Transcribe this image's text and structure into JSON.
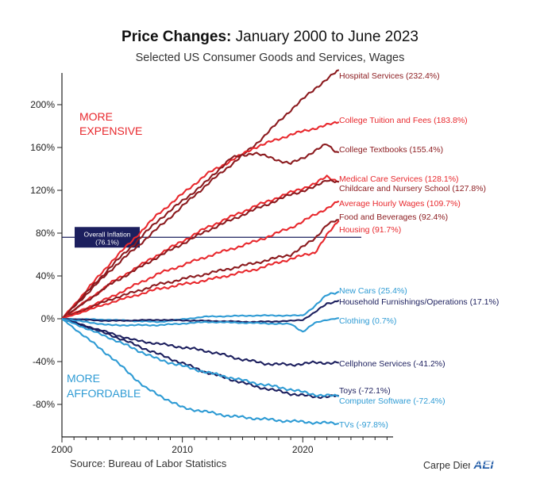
{
  "header": {
    "title_bold": "Price Changes:",
    "title_rest": "January 2000 to June 2023",
    "subtitle": "Selected US Consumer Goods and Services, Wages"
  },
  "annotations": {
    "more_expensive_1": "MORE",
    "more_expensive_2": "EXPENSIVE",
    "more_affordable_1": "MORE",
    "more_affordable_2": "AFFORDABLE",
    "overall_inflation_1": "Overall Inflation",
    "overall_inflation_2": "(76.1%)"
  },
  "footer": {
    "source": "Source: Bureau of Labor Statistics",
    "brand": "Carpe Diem",
    "logo_text": "AEI"
  },
  "colors": {
    "red": "#e8282d",
    "dark_red": "#8b1a1e",
    "light_blue": "#2e9bd4",
    "navy": "#1c1f5e",
    "axis": "#222222"
  },
  "chart_data": {
    "type": "line",
    "title": "Price Changes: January 2000 to June 2023",
    "subtitle": "Selected US Consumer Goods and Services, Wages",
    "xlabel": "",
    "ylabel": "",
    "x_ticks": [
      "2000",
      "2010",
      "2020"
    ],
    "y_ticks": [
      "200%",
      "160%",
      "120%",
      "80%",
      "40%",
      "0%",
      "-40%",
      "-80%"
    ],
    "y_tick_values": [
      200,
      160,
      120,
      80,
      40,
      0,
      -40,
      -80
    ],
    "xlim": [
      2000,
      2027.5
    ],
    "ylim": [
      -110,
      235
    ],
    "reference_line": {
      "label": "Overall Inflation (76.1%)",
      "value": 76.1
    },
    "series": [
      {
        "name": "Hospital Services (232.4%)",
        "color": "#8b1a1e",
        "points": [
          [
            2000,
            0
          ],
          [
            2004,
            45
          ],
          [
            2008,
            85
          ],
          [
            2012,
            125
          ],
          [
            2016,
            162
          ],
          [
            2019,
            195
          ],
          [
            2021,
            215
          ],
          [
            2023,
            232.4
          ]
        ]
      },
      {
        "name": "College Tuition and Fees (183.8%)",
        "color": "#e8282d",
        "points": [
          [
            2000,
            0
          ],
          [
            2004,
            52
          ],
          [
            2008,
            98
          ],
          [
            2012,
            135
          ],
          [
            2016,
            160
          ],
          [
            2019,
            172
          ],
          [
            2021,
            178
          ],
          [
            2023,
            183.8
          ]
        ]
      },
      {
        "name": "College Textbooks (155.4%)",
        "color": "#8b1a1e",
        "points": [
          [
            2000,
            0
          ],
          [
            2004,
            48
          ],
          [
            2008,
            92
          ],
          [
            2012,
            128
          ],
          [
            2014,
            150
          ],
          [
            2016,
            155
          ],
          [
            2018,
            148
          ],
          [
            2019,
            145
          ],
          [
            2020,
            150
          ],
          [
            2021,
            157
          ],
          [
            2022,
            163
          ],
          [
            2022.5,
            158
          ],
          [
            2023,
            155.4
          ]
        ]
      },
      {
        "name": "Medical Care Services (128.1%)",
        "color": "#e8282d",
        "points": [
          [
            2000,
            0
          ],
          [
            2004,
            33
          ],
          [
            2008,
            60
          ],
          [
            2012,
            85
          ],
          [
            2016,
            105
          ],
          [
            2019,
            118
          ],
          [
            2021,
            126
          ],
          [
            2022,
            133
          ],
          [
            2023,
            128.1
          ]
        ]
      },
      {
        "name": "Childcare and Nursery School (127.8%)",
        "color": "#8b1a1e",
        "points": [
          [
            2000,
            0
          ],
          [
            2004,
            32
          ],
          [
            2008,
            58
          ],
          [
            2012,
            82
          ],
          [
            2016,
            102
          ],
          [
            2019,
            116
          ],
          [
            2021,
            123
          ],
          [
            2022,
            130
          ],
          [
            2023,
            127.8
          ]
        ]
      },
      {
        "name": "Average Hourly Wages (109.7%)",
        "color": "#e8282d",
        "points": [
          [
            2000,
            0
          ],
          [
            2004,
            20
          ],
          [
            2008,
            42
          ],
          [
            2012,
            58
          ],
          [
            2016,
            72
          ],
          [
            2019,
            85
          ],
          [
            2021,
            97
          ],
          [
            2023,
            109.7
          ]
        ]
      },
      {
        "name": "Food and Beverages (92.4%)",
        "color": "#8b1a1e",
        "points": [
          [
            2000,
            0
          ],
          [
            2004,
            18
          ],
          [
            2008,
            32
          ],
          [
            2012,
            42
          ],
          [
            2016,
            52
          ],
          [
            2019,
            60
          ],
          [
            2020,
            67
          ],
          [
            2021,
            75
          ],
          [
            2022,
            88
          ],
          [
            2023,
            92.4
          ]
        ]
      },
      {
        "name": "Housing (91.7%)",
        "color": "#e8282d",
        "points": [
          [
            2000,
            0
          ],
          [
            2004,
            15
          ],
          [
            2008,
            28
          ],
          [
            2012,
            36
          ],
          [
            2016,
            46
          ],
          [
            2019,
            56
          ],
          [
            2021,
            62
          ],
          [
            2022,
            78
          ],
          [
            2023,
            91.7
          ]
        ]
      },
      {
        "name": "New Cars (25.4%)",
        "color": "#2e9bd4",
        "points": [
          [
            2000,
            0
          ],
          [
            2004,
            -1
          ],
          [
            2008,
            -3
          ],
          [
            2012,
            2
          ],
          [
            2016,
            3
          ],
          [
            2019,
            3
          ],
          [
            2020,
            3
          ],
          [
            2021,
            12
          ],
          [
            2022,
            22
          ],
          [
            2023,
            25.4
          ]
        ]
      },
      {
        "name": "Household Furnishings/Operations (17.1%)",
        "color": "#1c1f5e",
        "points": [
          [
            2000,
            0
          ],
          [
            2004,
            -2
          ],
          [
            2008,
            -1
          ],
          [
            2012,
            -2
          ],
          [
            2016,
            -3
          ],
          [
            2019,
            -2
          ],
          [
            2020,
            -1
          ],
          [
            2021,
            6
          ],
          [
            2022,
            14
          ],
          [
            2023,
            17.1
          ]
        ]
      },
      {
        "name": "Clothing (0.7%)",
        "color": "#2e9bd4",
        "points": [
          [
            2000,
            0
          ],
          [
            2004,
            -6
          ],
          [
            2008,
            -6
          ],
          [
            2012,
            -3
          ],
          [
            2016,
            -4
          ],
          [
            2019,
            -5
          ],
          [
            2020,
            -12
          ],
          [
            2021,
            -4
          ],
          [
            2022,
            -1
          ],
          [
            2023,
            0.7
          ]
        ]
      },
      {
        "name": "Cellphone Services (-41.2%)",
        "color": "#1c1f5e",
        "points": [
          [
            2000,
            0
          ],
          [
            2003,
            -10
          ],
          [
            2006,
            -20
          ],
          [
            2009,
            -25
          ],
          [
            2012,
            -30
          ],
          [
            2015,
            -38
          ],
          [
            2017,
            -42
          ],
          [
            2019,
            -43
          ],
          [
            2021,
            -41
          ],
          [
            2023,
            -41.2
          ]
        ]
      },
      {
        "name": "Toys (-72.1%)",
        "color": "#1c1f5e",
        "points": [
          [
            2000,
            0
          ],
          [
            2004,
            -15
          ],
          [
            2008,
            -33
          ],
          [
            2012,
            -50
          ],
          [
            2016,
            -63
          ],
          [
            2019,
            -70
          ],
          [
            2021,
            -73
          ],
          [
            2023,
            -72.1
          ]
        ]
      },
      {
        "name": "Computer Software (-72.4%)",
        "color": "#2e9bd4",
        "points": [
          [
            2000,
            0
          ],
          [
            2004,
            -18
          ],
          [
            2008,
            -38
          ],
          [
            2012,
            -50
          ],
          [
            2016,
            -60
          ],
          [
            2019,
            -66
          ],
          [
            2021,
            -71
          ],
          [
            2023,
            -72.4
          ]
        ]
      },
      {
        "name": "TVs (-97.8%)",
        "color": "#2e9bd4",
        "points": [
          [
            2000,
            0
          ],
          [
            2004,
            -35
          ],
          [
            2007,
            -65
          ],
          [
            2010,
            -83
          ],
          [
            2014,
            -91
          ],
          [
            2018,
            -95
          ],
          [
            2021,
            -97
          ],
          [
            2023,
            -97.8
          ]
        ]
      }
    ]
  }
}
